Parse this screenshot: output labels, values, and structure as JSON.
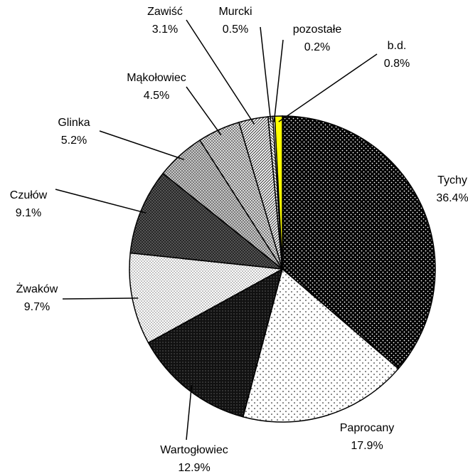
{
  "chart_data": {
    "type": "pie",
    "categories": [
      "Tychy",
      "Paprocany",
      "Wartogłowiec",
      "Żwaków",
      "Czułów",
      "Glinka",
      "Mąkołowiec",
      "Zawiść",
      "Murcki",
      "pozostałe",
      "b.d."
    ],
    "values": [
      36.4,
      17.9,
      12.9,
      9.7,
      9.1,
      5.2,
      4.5,
      3.1,
      0.5,
      0.2,
      0.8
    ],
    "value_labels": [
      "36.4%",
      "17.9%",
      "12.9%",
      "9.7%",
      "9.1%",
      "5.2%",
      "4.5%",
      "3.1%",
      "0.5%",
      "0.2%",
      "0.8%"
    ]
  }
}
